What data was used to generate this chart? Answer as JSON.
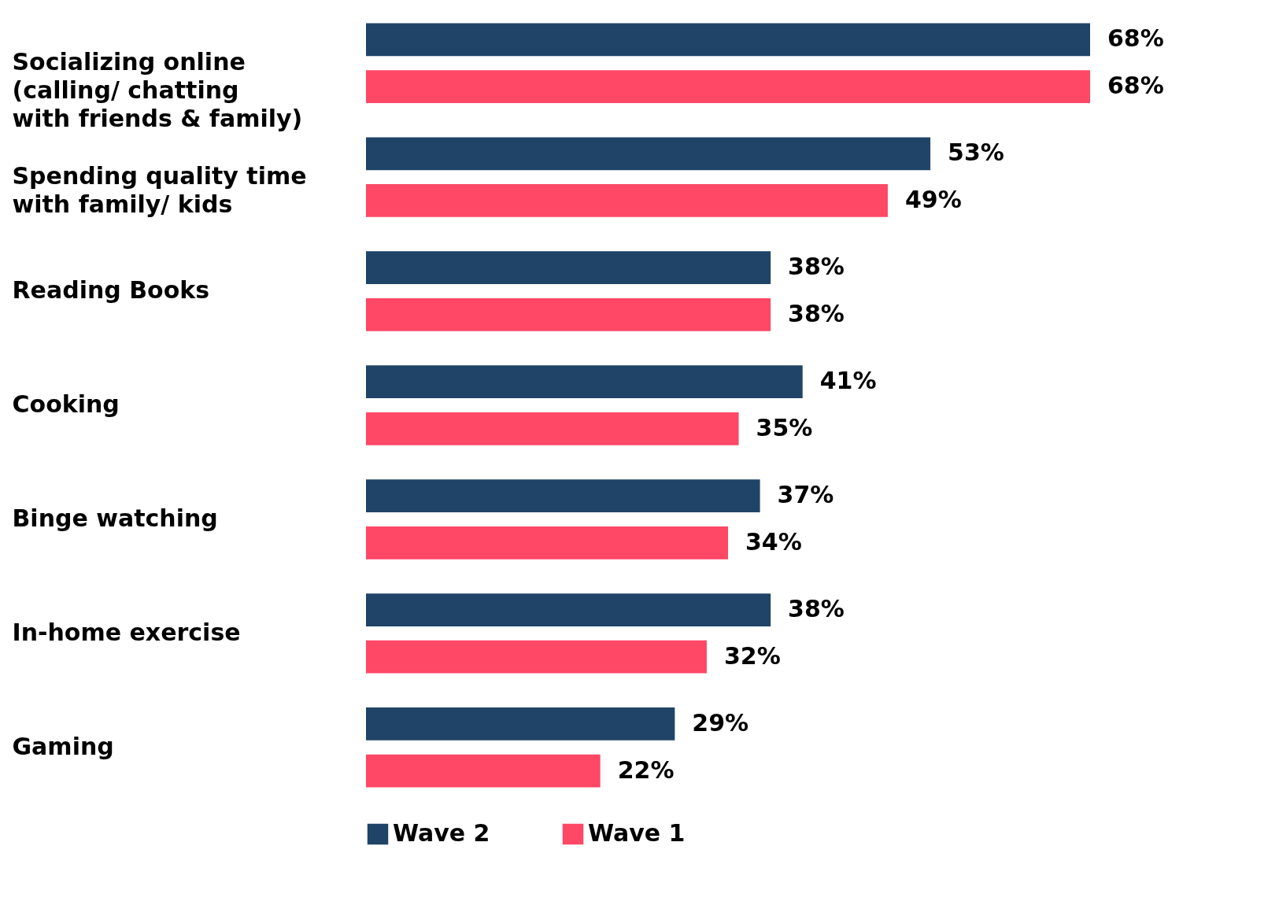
{
  "chart_data": {
    "type": "bar",
    "orientation": "horizontal",
    "categories": [
      "Socializing online\n(calling/ chatting\nwith friends & family)",
      "Spending quality time\nwith family/ kids",
      "Reading Books",
      "Cooking",
      "Binge watching",
      "In-home exercise",
      "Gaming"
    ],
    "series": [
      {
        "name": "Wave 2",
        "color": "#1f4467",
        "values": [
          68,
          53,
          38,
          41,
          37,
          38,
          29
        ],
        "value_labels": [
          "68%",
          "53%",
          "38%",
          "41%",
          "37%",
          "38%",
          "29%"
        ]
      },
      {
        "name": "Wave 1",
        "color": "#ff4766",
        "values": [
          68,
          49,
          38,
          35,
          34,
          32,
          22
        ],
        "value_labels": [
          "68%",
          "49%",
          "38%",
          "35%",
          "34%",
          "32%",
          "22%"
        ]
      }
    ],
    "legend": "bottom left"
  }
}
